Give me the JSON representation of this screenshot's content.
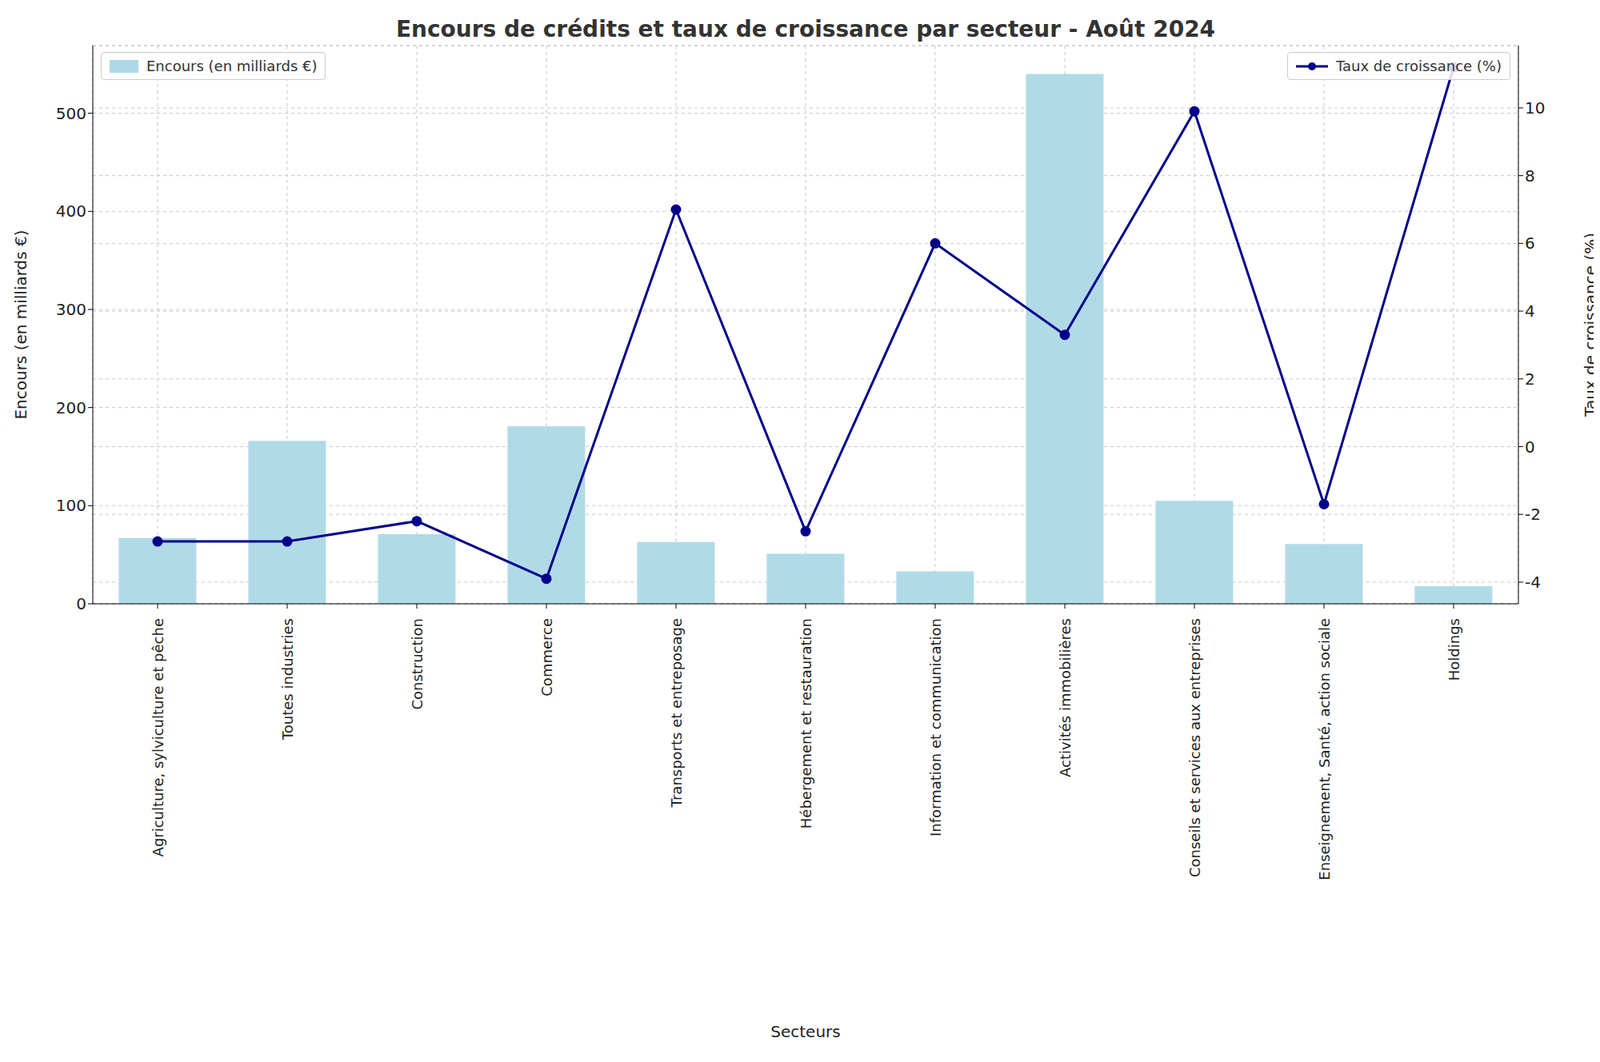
{
  "chart_data": {
    "type": "bar",
    "title": "Encours de crédits et taux de croissance par secteur - Août 2024",
    "x_label": "Secteurs",
    "y_label": "Encours (en milliards €)",
    "y2_label": "Taux de croissance (%)",
    "categories": [
      "Agriculture, sylviculture et pêche",
      "Toutes industries",
      "Construction",
      "Commerce",
      "Transports et entreposage",
      "Hébergement et restauration",
      "Information et communication",
      "Activités immobilières",
      "Conseils et services aux entreprises",
      "Enseignement, Santé, action sociale",
      "Holdings"
    ],
    "series": [
      {
        "name": "Encours (en milliards €)",
        "type": "bar",
        "color": "#add8e6",
        "legend": "upper left",
        "values": [
          67,
          166,
          71,
          181,
          63,
          51,
          33,
          540,
          105,
          61,
          18
        ]
      },
      {
        "name": "Taux de croissance (%)",
        "type": "line",
        "axis": "y2",
        "color": "#00008b",
        "marker": "circle",
        "legend": "upper right",
        "values": [
          -2.8,
          -2.8,
          -2.2,
          -3.9,
          7.0,
          -2.5,
          6.0,
          3.3,
          9.9,
          -1.7,
          11.2
        ]
      }
    ],
    "ylim": [
      0,
      569
    ],
    "yticks": [
      0,
      100,
      200,
      300,
      400,
      500
    ],
    "y2lim": [
      -4.64,
      11.84
    ],
    "y2ticks": [
      -4,
      -2,
      0,
      2,
      4,
      6,
      8,
      10
    ],
    "grid": true
  }
}
